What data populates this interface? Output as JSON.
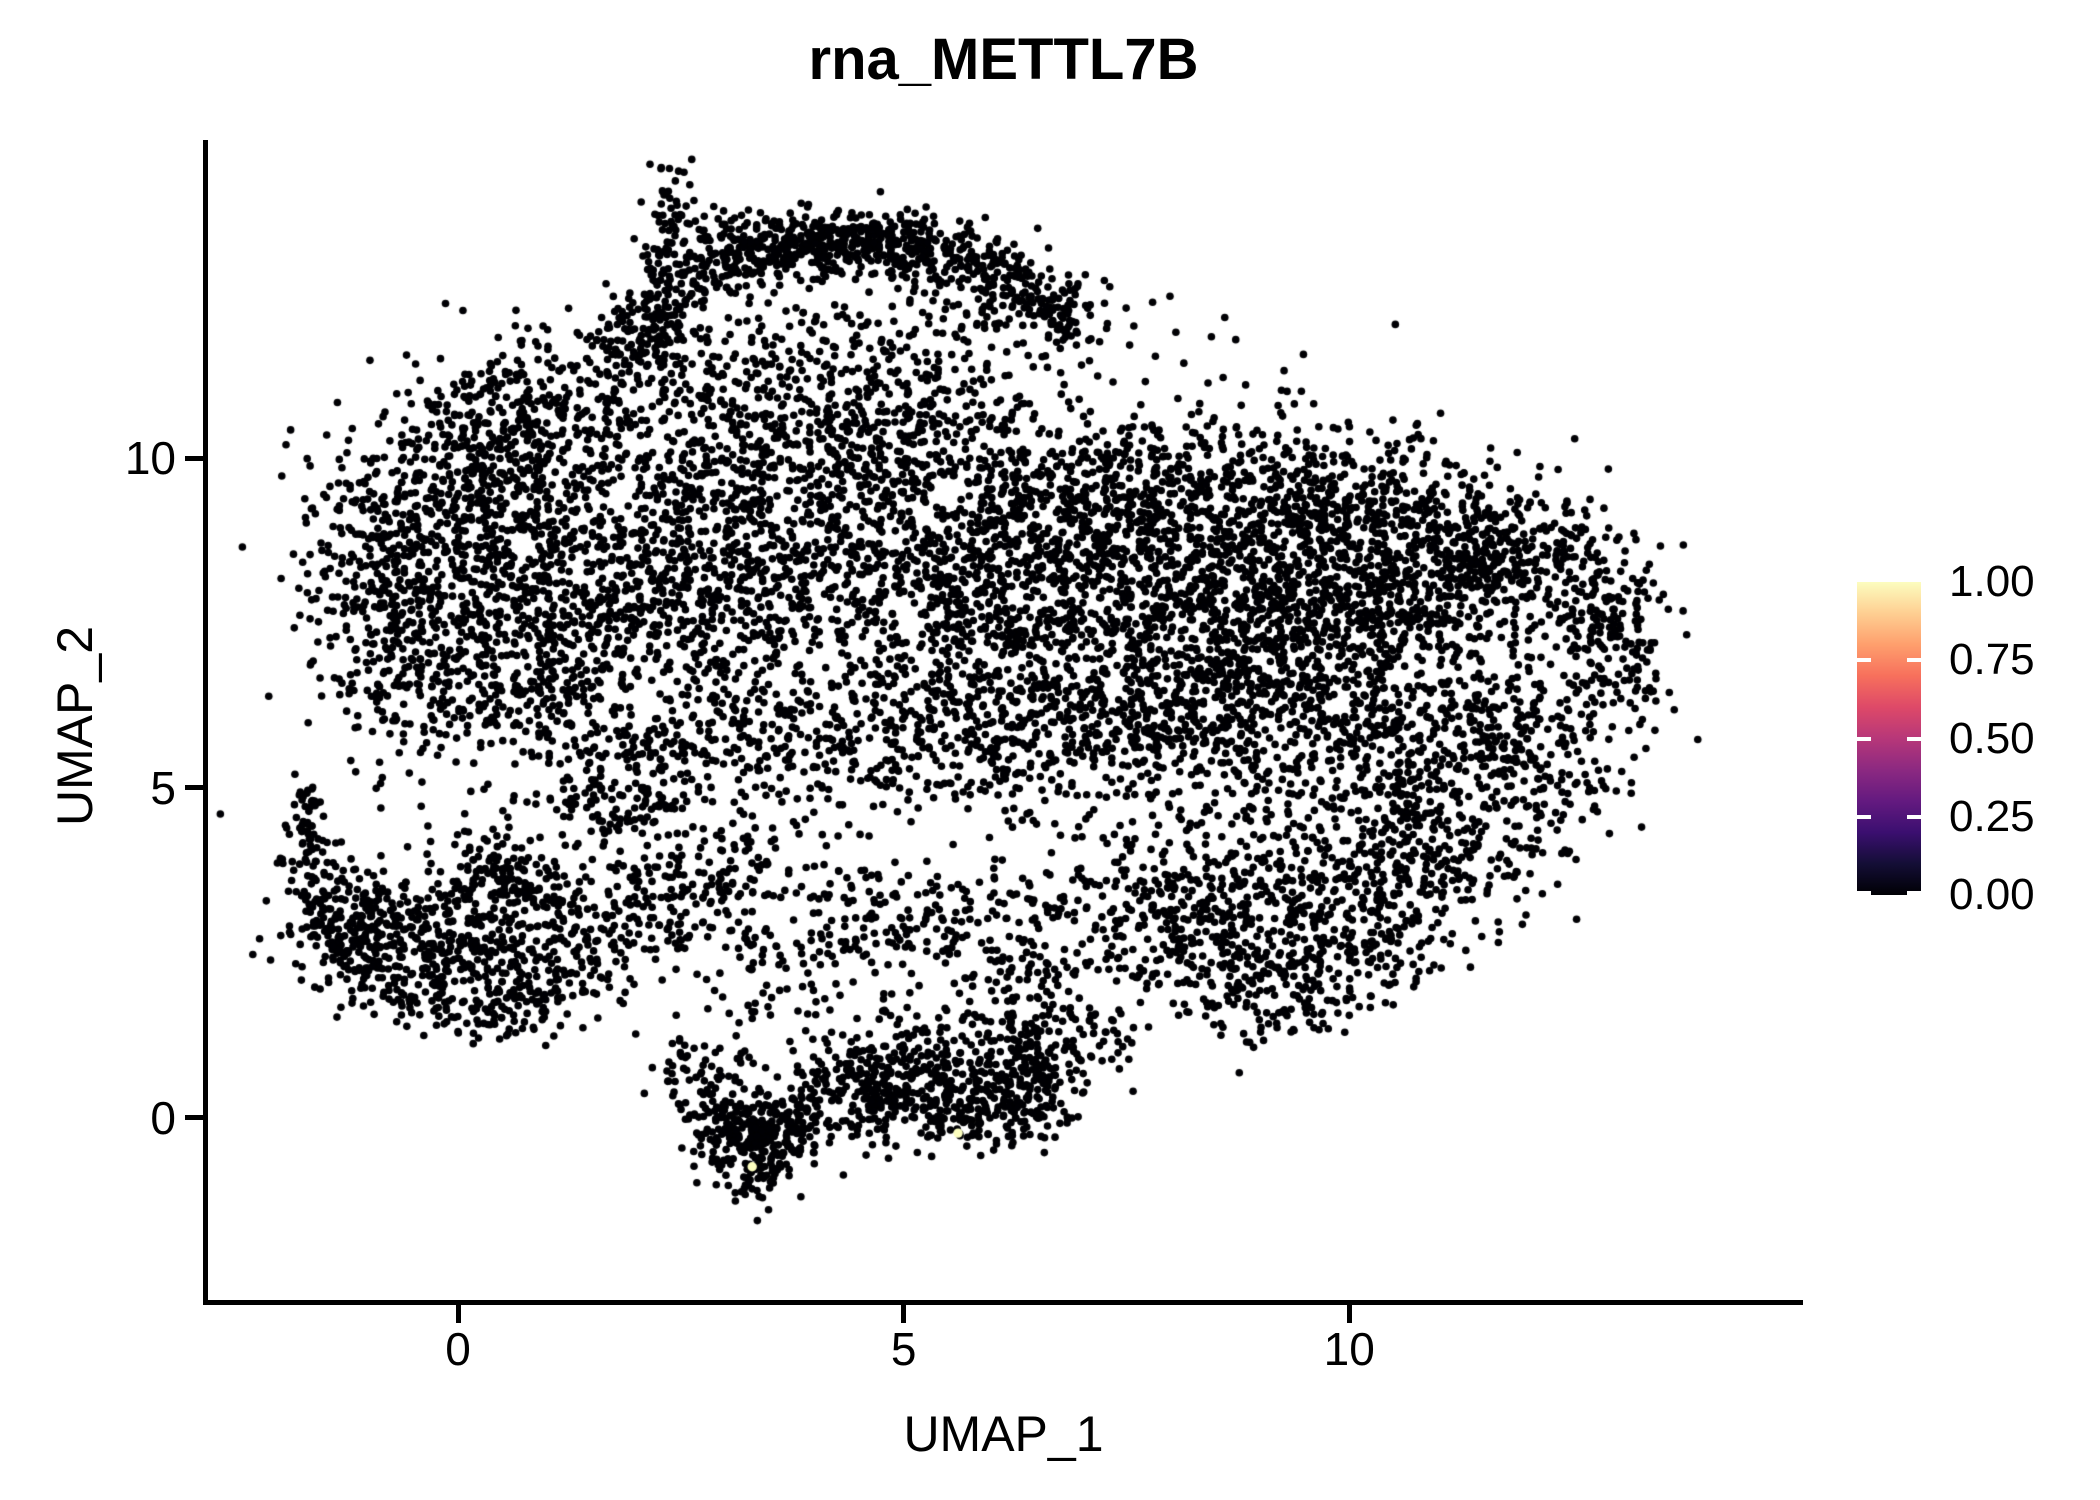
{
  "chart_data": {
    "type": "scatter",
    "title": "rna_METTL7B",
    "xlabel": "UMAP_1",
    "ylabel": "UMAP_2",
    "x_ticks": [
      0,
      5,
      10
    ],
    "y_ticks": [
      0,
      5,
      10
    ],
    "xlim": [
      -2.84,
      15.08
    ],
    "ylim": [
      -2.79,
      14.79
    ],
    "grid": false,
    "background": "#ffffff",
    "point_color": "#000004",
    "point_radius_px": 3.8,
    "density_scale": 0.8,
    "seed": 42,
    "clusters": [
      [
        2.0,
        11.85,
        0.3,
        0.3,
        120
      ],
      [
        2.35,
        12.7,
        0.22,
        0.5,
        140
      ],
      [
        2.4,
        13.9,
        0.16,
        0.28,
        40
      ],
      [
        3.05,
        13.0,
        0.33,
        0.3,
        190
      ],
      [
        3.85,
        13.25,
        0.35,
        0.25,
        210
      ],
      [
        4.65,
        13.3,
        0.4,
        0.25,
        210
      ],
      [
        5.45,
        13.05,
        0.4,
        0.28,
        190
      ],
      [
        6.25,
        12.55,
        0.3,
        0.3,
        140
      ],
      [
        6.8,
        12.1,
        0.22,
        0.3,
        80
      ],
      [
        4.3,
        11.7,
        1.5,
        0.65,
        260
      ],
      [
        2.7,
        10.95,
        0.7,
        0.5,
        110
      ],
      [
        0.9,
        11.0,
        0.5,
        0.5,
        170
      ],
      [
        0.35,
        10.3,
        0.6,
        0.6,
        220
      ],
      [
        0.1,
        9.4,
        0.8,
        0.7,
        400
      ],
      [
        -0.9,
        8.2,
        0.5,
        0.9,
        300
      ],
      [
        0.6,
        8.1,
        0.7,
        0.8,
        340
      ],
      [
        -0.4,
        6.7,
        0.55,
        0.75,
        250
      ],
      [
        0.9,
        6.6,
        0.7,
        0.7,
        250
      ],
      [
        2.0,
        9.0,
        0.9,
        0.9,
        360
      ],
      [
        2.2,
        7.4,
        0.8,
        0.8,
        280
      ],
      [
        3.3,
        8.3,
        0.9,
        0.9,
        360
      ],
      [
        3.5,
        10.2,
        0.9,
        0.7,
        280
      ],
      [
        4.6,
        9.0,
        0.9,
        0.9,
        360
      ],
      [
        5.0,
        10.45,
        0.8,
        0.6,
        230
      ],
      [
        5.7,
        8.2,
        0.9,
        0.9,
        380
      ],
      [
        6.7,
        9.6,
        0.8,
        0.7,
        330
      ],
      [
        6.3,
        7.1,
        0.8,
        0.8,
        300
      ],
      [
        7.6,
        8.4,
        0.9,
        0.9,
        520
      ],
      [
        8.6,
        9.4,
        0.8,
        0.7,
        400
      ],
      [
        8.3,
        7.3,
        0.8,
        0.8,
        400
      ],
      [
        9.5,
        8.3,
        0.8,
        0.8,
        430
      ],
      [
        10.4,
        9.2,
        0.8,
        0.65,
        360
      ],
      [
        11.3,
        8.6,
        0.6,
        0.6,
        260
      ],
      [
        9.9,
        7.0,
        0.7,
        0.7,
        280
      ],
      [
        10.8,
        7.7,
        0.5,
        0.45,
        160
      ],
      [
        12.1,
        8.45,
        0.5,
        0.55,
        190
      ],
      [
        12.65,
        7.3,
        0.38,
        0.85,
        200
      ],
      [
        13.1,
        7.0,
        0.22,
        0.55,
        80
      ],
      [
        11.5,
        5.9,
        0.6,
        0.45,
        160
      ],
      [
        10.6,
        5.6,
        0.6,
        0.5,
        160
      ],
      [
        12.2,
        5.2,
        0.45,
        0.5,
        120
      ],
      [
        8.9,
        6.1,
        0.8,
        0.65,
        280
      ],
      [
        7.4,
        5.9,
        0.8,
        0.6,
        240
      ],
      [
        6.0,
        5.6,
        0.8,
        0.55,
        210
      ],
      [
        4.6,
        5.9,
        0.8,
        0.6,
        210
      ],
      [
        3.2,
        5.9,
        0.7,
        0.55,
        170
      ],
      [
        1.9,
        5.6,
        0.55,
        0.45,
        110
      ],
      [
        9.6,
        3.6,
        0.75,
        0.8,
        360
      ],
      [
        10.6,
        4.4,
        0.6,
        0.6,
        210
      ],
      [
        8.6,
        2.6,
        0.6,
        0.6,
        240
      ],
      [
        9.3,
        1.9,
        0.5,
        0.4,
        120
      ],
      [
        7.8,
        3.4,
        0.6,
        0.6,
        190
      ],
      [
        11.4,
        3.9,
        0.45,
        0.5,
        120
      ],
      [
        10.3,
        2.6,
        0.45,
        0.45,
        110
      ],
      [
        5.2,
        3.2,
        1.3,
        0.3,
        190
      ],
      [
        4.0,
        2.6,
        0.9,
        0.25,
        110
      ],
      [
        6.3,
        2.4,
        0.7,
        0.3,
        100
      ],
      [
        3.0,
        4.0,
        0.8,
        0.35,
        120
      ],
      [
        1.8,
        4.75,
        0.55,
        0.3,
        120
      ],
      [
        2.6,
        3.3,
        0.5,
        0.3,
        70
      ],
      [
        6.6,
        1.6,
        0.35,
        0.4,
        70
      ],
      [
        7.2,
        1.1,
        0.3,
        0.3,
        40
      ],
      [
        5.5,
        8.2,
        2.7,
        2.1,
        420
      ],
      [
        8.8,
        5.3,
        1.8,
        1.2,
        220
      ],
      [
        0.05,
        2.9,
        0.75,
        0.6,
        360
      ],
      [
        -0.6,
        2.3,
        0.5,
        0.45,
        190
      ],
      [
        -1.25,
        2.8,
        0.35,
        0.5,
        160
      ],
      [
        -1.55,
        3.4,
        0.22,
        0.45,
        90
      ],
      [
        0.6,
        3.6,
        0.5,
        0.4,
        140
      ],
      [
        0.9,
        2.2,
        0.5,
        0.4,
        140
      ],
      [
        0.5,
        1.7,
        0.4,
        0.25,
        80
      ],
      [
        1.4,
        2.9,
        0.45,
        0.4,
        80
      ],
      [
        -1.72,
        4.35,
        0.12,
        0.3,
        45
      ],
      [
        -1.7,
        4.87,
        0.1,
        0.12,
        20
      ],
      [
        2.2,
        3.0,
        0.55,
        0.35,
        45
      ],
      [
        3.35,
        -0.45,
        0.3,
        0.33,
        220
      ],
      [
        3.0,
        0.0,
        0.28,
        0.28,
        100
      ],
      [
        3.75,
        -0.1,
        0.3,
        0.3,
        100
      ],
      [
        4.35,
        0.55,
        0.45,
        0.4,
        160
      ],
      [
        5.0,
        0.85,
        0.4,
        0.33,
        120
      ],
      [
        5.55,
        0.45,
        0.4,
        0.35,
        130
      ],
      [
        5.95,
        0.1,
        0.4,
        0.35,
        160
      ],
      [
        6.45,
        0.65,
        0.3,
        0.4,
        130
      ],
      [
        6.2,
        1.2,
        0.25,
        0.25,
        55
      ],
      [
        4.7,
        0.0,
        0.5,
        0.28,
        85
      ],
      [
        2.65,
        0.8,
        0.3,
        0.35,
        65
      ],
      [
        3.3,
        -1.0,
        0.15,
        0.15,
        22
      ],
      [
        3.6,
        1.6,
        0.5,
        0.35,
        40
      ],
      [
        5.3,
        1.45,
        0.4,
        0.28,
        35
      ]
    ],
    "highlight_points": [
      {
        "x": 3.3,
        "y": -0.74,
        "value": 1.0,
        "color": "#fcfebf"
      },
      {
        "x": 5.61,
        "y": -0.23,
        "value": 1.0,
        "color": "#fcfebf"
      }
    ],
    "legend": {
      "breaks": [
        "1.00",
        "0.75",
        "0.50",
        "0.25",
        "0.00"
      ],
      "break_values": [
        1.0,
        0.75,
        0.5,
        0.25,
        0.0
      ],
      "colormap": "magma",
      "gradient_stops": [
        "#000004",
        "#140e36",
        "#3b0f70",
        "#641a80",
        "#8c2981",
        "#b73779",
        "#de4968",
        "#f7705c",
        "#fe9f6d",
        "#fecf92",
        "#fcfdbf"
      ]
    }
  }
}
